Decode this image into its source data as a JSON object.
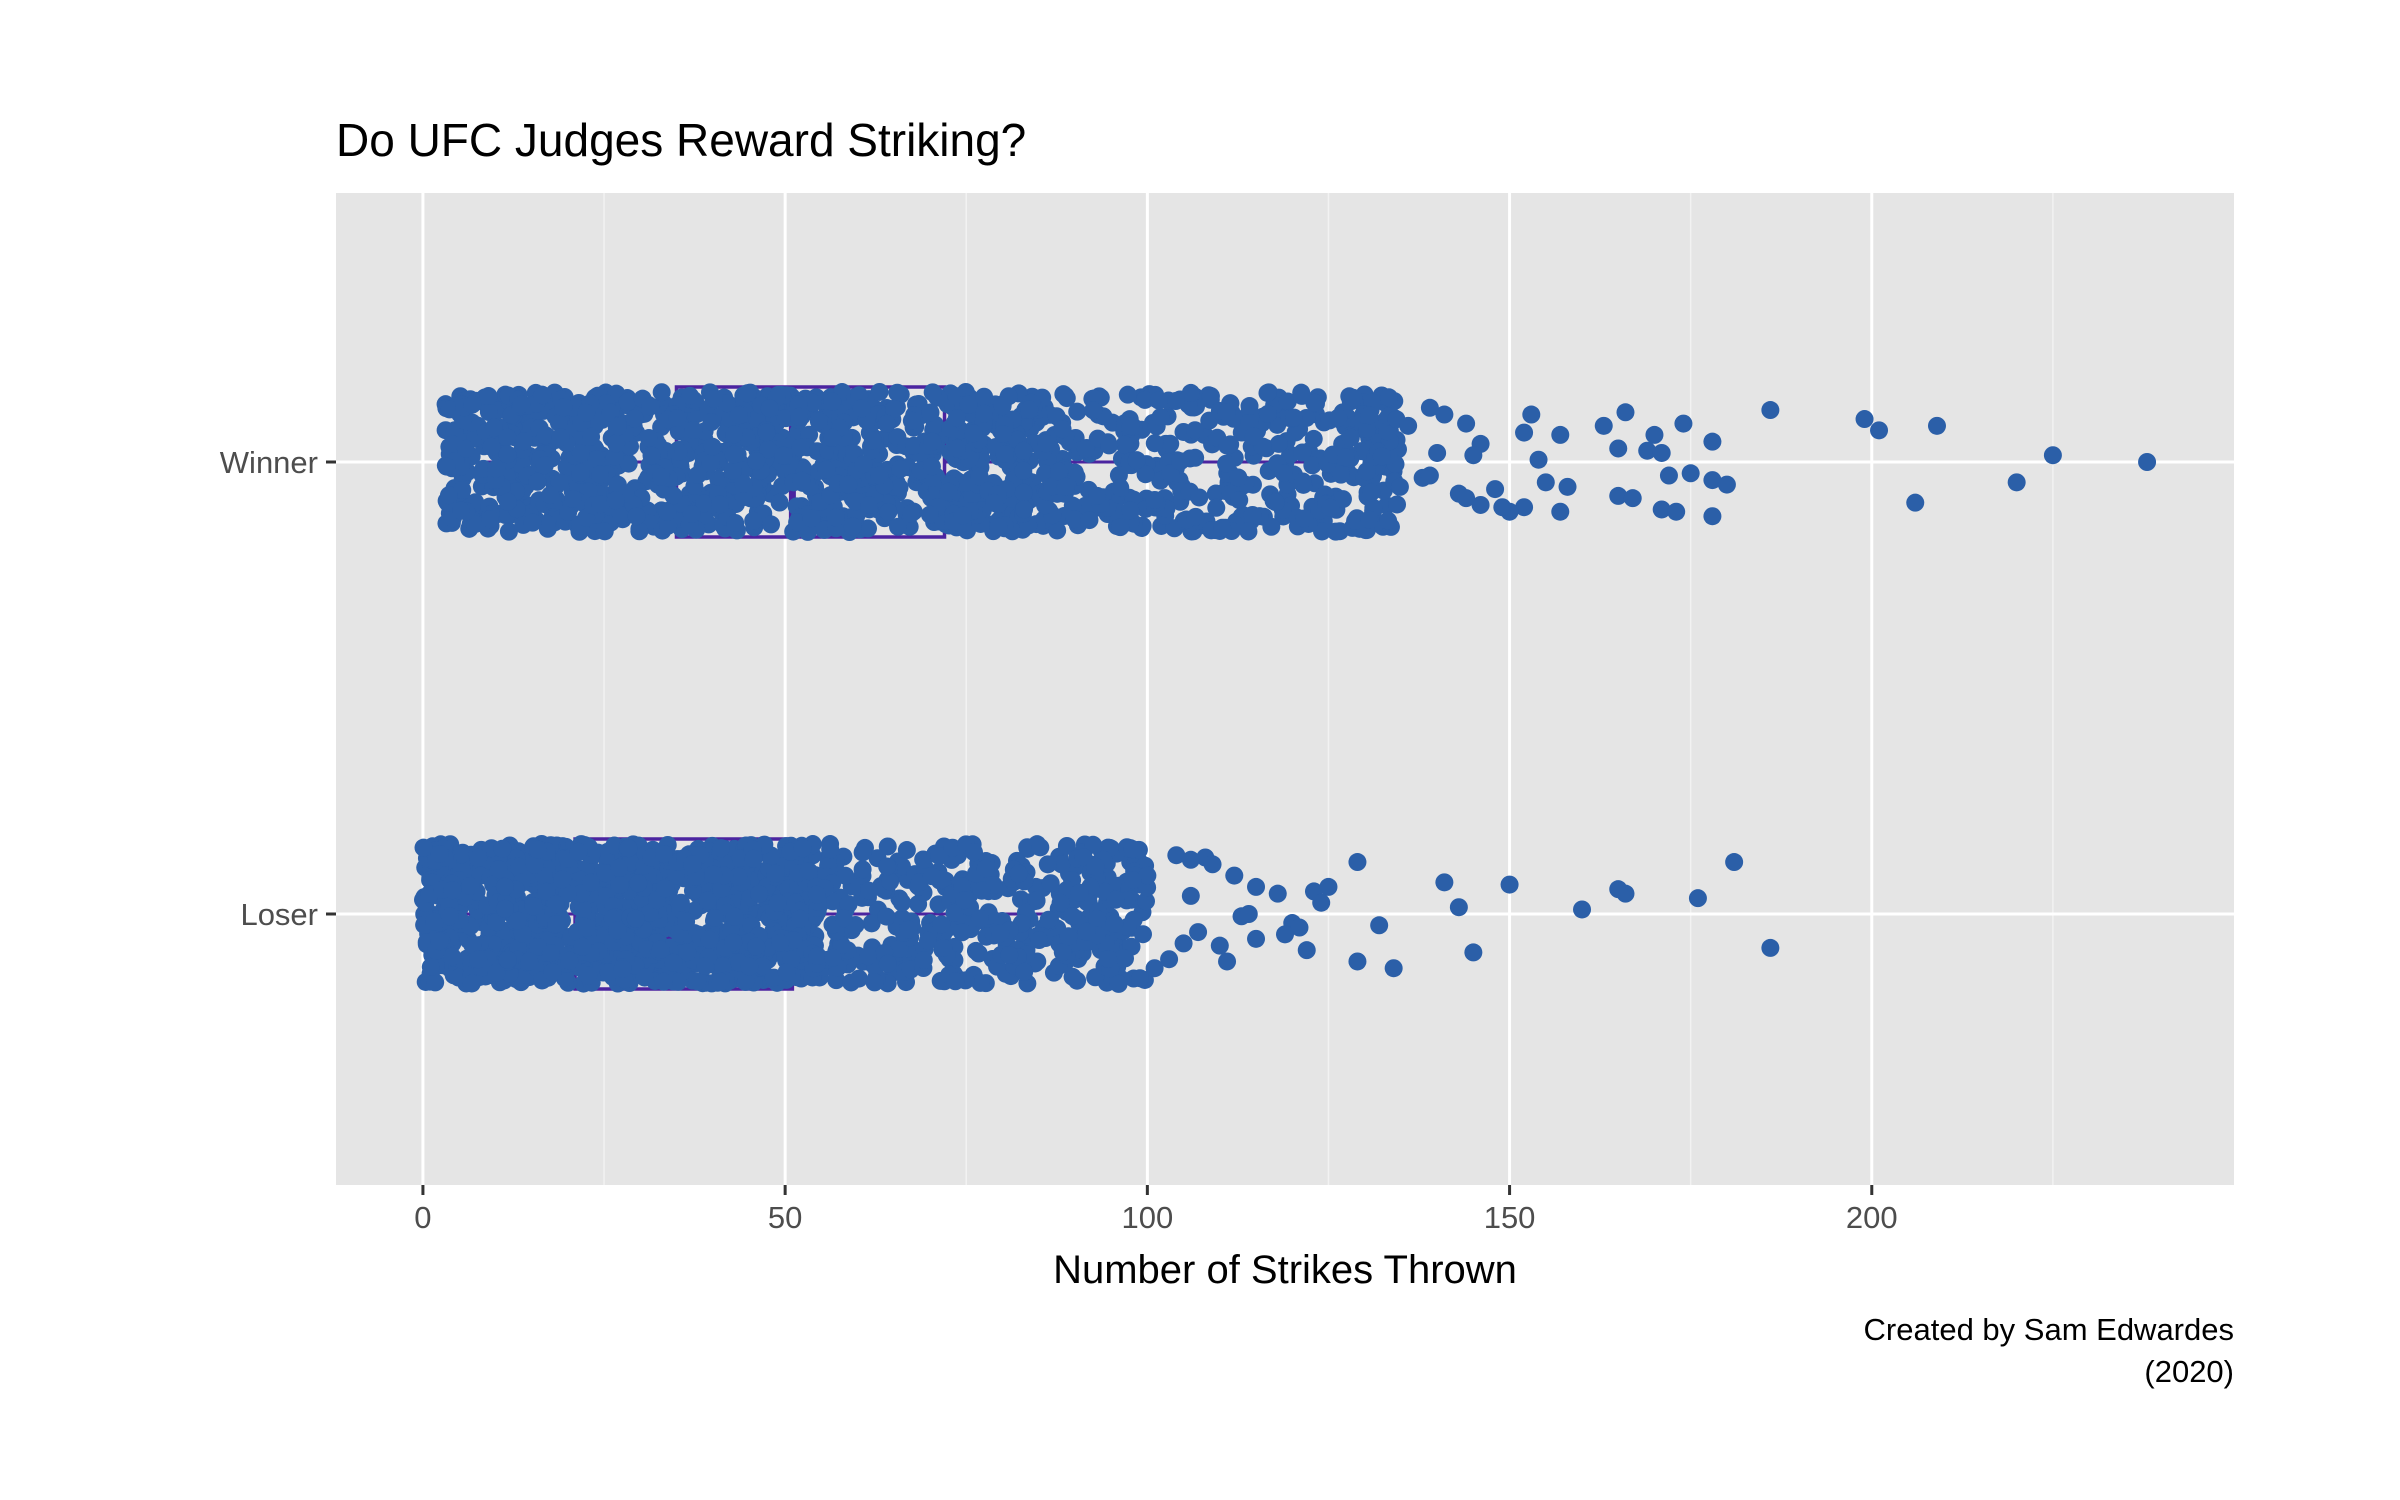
{
  "chart_data": {
    "type": "boxplot",
    "title": "Do UFC Judges Reward Striking?",
    "xlabel": "Number of Strikes Thrown",
    "ylabel": "",
    "caption_lines": [
      "Created by Sam Edwardes",
      "(2020)"
    ],
    "xlim": [
      -12,
      250
    ],
    "x_ticks": [
      0,
      50,
      100,
      150,
      200
    ],
    "x_tick_labels": [
      "0",
      "50",
      "100",
      "150",
      "200"
    ],
    "categories": [
      "Winner",
      "Loser"
    ],
    "grid": true,
    "colors": {
      "points": "#2b5fa8",
      "box_stroke": "#4b24a0",
      "box_fill": "#e6e6e6",
      "panel": "#e5e5e5",
      "grid": "#ffffff"
    },
    "boxes": [
      {
        "category": "Winner",
        "whisker_low": 3,
        "q1": 35,
        "median": 51,
        "q3": 72,
        "whisker_high": 127
      },
      {
        "category": "Loser",
        "whisker_low": 0,
        "q1": 21,
        "median": 34,
        "q3": 51,
        "whisker_high": 96
      }
    ],
    "points": {
      "Winner": [
        [
          186,
          0.23
        ],
        [
          199,
          0.19
        ],
        [
          209,
          0.16
        ],
        [
          201,
          0.14
        ],
        [
          225,
          0.03
        ],
        [
          238,
          0.0
        ],
        [
          220,
          -0.09
        ],
        [
          206,
          -0.18
        ],
        [
          174,
          0.17
        ],
        [
          170,
          0.12
        ],
        [
          178,
          0.09
        ],
        [
          163,
          0.16
        ],
        [
          165,
          0.06
        ],
        [
          169,
          0.05
        ],
        [
          171,
          0.04
        ],
        [
          166,
          0.22
        ],
        [
          153,
          0.21
        ],
        [
          157,
          0.12
        ],
        [
          152,
          0.13
        ],
        [
          146,
          0.08
        ],
        [
          154,
          0.01
        ],
        [
          140,
          0.04
        ],
        [
          145,
          0.03
        ],
        [
          139,
          0.24
        ],
        [
          141,
          0.21
        ],
        [
          144,
          0.17
        ],
        [
          136,
          0.16
        ],
        [
          175,
          -0.05
        ],
        [
          172,
          -0.06
        ],
        [
          178,
          -0.08
        ],
        [
          180,
          -0.1
        ],
        [
          155,
          -0.09
        ],
        [
          158,
          -0.11
        ],
        [
          165,
          -0.15
        ],
        [
          167,
          -0.16
        ],
        [
          171,
          -0.21
        ],
        [
          173,
          -0.22
        ],
        [
          178,
          -0.24
        ],
        [
          152,
          -0.2
        ],
        [
          157,
          -0.22
        ],
        [
          150,
          -0.22
        ],
        [
          149,
          -0.2
        ],
        [
          146,
          -0.19
        ],
        [
          148,
          -0.12
        ],
        [
          143,
          -0.14
        ],
        [
          144,
          -0.16
        ],
        [
          138,
          -0.07
        ],
        [
          139,
          -0.06
        ]
      ],
      "Loser": [
        [
          181,
          0.23
        ],
        [
          176,
          0.07
        ],
        [
          166,
          0.09
        ],
        [
          165,
          0.11
        ],
        [
          160,
          0.02
        ],
        [
          150,
          0.13
        ],
        [
          143,
          0.03
        ],
        [
          141,
          0.14
        ],
        [
          145,
          -0.17
        ],
        [
          132,
          -0.05
        ],
        [
          129,
          0.23
        ],
        [
          129,
          -0.21
        ],
        [
          134,
          -0.24
        ],
        [
          186,
          -0.15
        ],
        [
          115,
          0.12
        ],
        [
          118,
          0.09
        ],
        [
          123,
          0.1
        ],
        [
          124,
          0.05
        ],
        [
          125,
          0.12
        ],
        [
          120,
          -0.04
        ],
        [
          121,
          -0.06
        ],
        [
          115,
          -0.11
        ],
        [
          119,
          -0.09
        ],
        [
          122,
          -0.16
        ],
        [
          113,
          -0.01
        ],
        [
          114,
          0.0
        ],
        [
          110,
          -0.14
        ],
        [
          111,
          -0.21
        ],
        [
          106,
          0.08
        ],
        [
          107,
          -0.08
        ],
        [
          105,
          -0.13
        ],
        [
          103,
          -0.2
        ],
        [
          108,
          0.25
        ],
        [
          109,
          0.22
        ],
        [
          104,
          0.26
        ],
        [
          106,
          0.24
        ],
        [
          101,
          -0.24
        ],
        [
          112,
          0.17
        ],
        [
          100,
          0.17
        ],
        [
          98,
          0.15
        ]
      ]
    }
  }
}
